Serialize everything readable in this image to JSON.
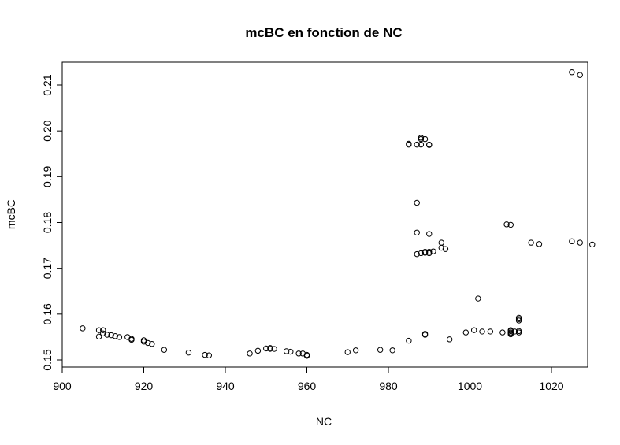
{
  "chart_data": {
    "type": "scatter",
    "title": "mcBC en fonction de NC",
    "xlabel": "NC",
    "ylabel": "mcBC",
    "xlim": [
      900,
      1030
    ],
    "ylim": [
      0.148,
      0.216
    ],
    "xticks": [
      900,
      920,
      940,
      960,
      980,
      1000,
      1020
    ],
    "xtick_labels": [
      "900",
      "920",
      "940",
      "960",
      "980",
      "1000",
      "1020"
    ],
    "yticks": [
      0.15,
      0.16,
      0.17,
      0.18,
      0.19,
      0.2,
      0.21
    ],
    "ytick_labels": [
      "0.15",
      "0.16",
      "0.17",
      "0.18",
      "0.19",
      "0.20",
      "0.21"
    ],
    "grid": false,
    "legend": "none",
    "marker": "open-circle",
    "series": [
      {
        "points": [
          [
            905,
            0.1569
          ],
          [
            909,
            0.1565
          ],
          [
            909,
            0.1551
          ],
          [
            910,
            0.1565
          ],
          [
            910,
            0.1558
          ],
          [
            911,
            0.1555
          ],
          [
            912,
            0.1554
          ],
          [
            913,
            0.1552
          ],
          [
            914,
            0.155
          ],
          [
            916,
            0.155
          ],
          [
            917,
            0.1546
          ],
          [
            917,
            0.1544
          ],
          [
            920,
            0.1543
          ],
          [
            920,
            0.154
          ],
          [
            921,
            0.1537
          ],
          [
            922,
            0.1535
          ],
          [
            925,
            0.1522
          ],
          [
            931,
            0.1516
          ],
          [
            935,
            0.1511
          ],
          [
            936,
            0.151
          ],
          [
            946,
            0.1514
          ],
          [
            948,
            0.152
          ],
          [
            950,
            0.1525
          ],
          [
            951,
            0.1524
          ],
          [
            951,
            0.1526
          ],
          [
            952,
            0.1524
          ],
          [
            955,
            0.1519
          ],
          [
            956,
            0.1518
          ],
          [
            958,
            0.1514
          ],
          [
            959,
            0.1514
          ],
          [
            960,
            0.1511
          ],
          [
            960,
            0.1509
          ],
          [
            970,
            0.1517
          ],
          [
            972,
            0.1521
          ],
          [
            978,
            0.1522
          ],
          [
            981,
            0.1521
          ],
          [
            985,
            0.1542
          ],
          [
            985,
            0.197
          ],
          [
            985,
            0.1972
          ],
          [
            987,
            0.197
          ],
          [
            988,
            0.197
          ],
          [
            988,
            0.1982
          ],
          [
            988,
            0.1985
          ],
          [
            989,
            0.1982
          ],
          [
            990,
            0.1969
          ],
          [
            990,
            0.197
          ],
          [
            987,
            0.1843
          ],
          [
            987,
            0.1778
          ],
          [
            990,
            0.1775
          ],
          [
            987,
            0.1731
          ],
          [
            988,
            0.1733
          ],
          [
            989,
            0.1734
          ],
          [
            989,
            0.1736
          ],
          [
            990,
            0.1733
          ],
          [
            990,
            0.1736
          ],
          [
            991,
            0.1737
          ],
          [
            993,
            0.1756
          ],
          [
            993,
            0.1745
          ],
          [
            994,
            0.1742
          ],
          [
            989,
            0.1555
          ],
          [
            989,
            0.1557
          ],
          [
            995,
            0.1545
          ],
          [
            999,
            0.156
          ],
          [
            1001,
            0.1565
          ],
          [
            1002,
            0.1634
          ],
          [
            1003,
            0.1562
          ],
          [
            1005,
            0.1562
          ],
          [
            1008,
            0.156
          ],
          [
            1009,
            0.1796
          ],
          [
            1010,
            0.1795
          ],
          [
            1010,
            0.1556
          ],
          [
            1010,
            0.1558
          ],
          [
            1010,
            0.156
          ],
          [
            1010,
            0.1563
          ],
          [
            1010,
            0.1565
          ],
          [
            1011,
            0.1562
          ],
          [
            1012,
            0.156
          ],
          [
            1012,
            0.1563
          ],
          [
            1012,
            0.1586
          ],
          [
            1012,
            0.1589
          ],
          [
            1012,
            0.1592
          ],
          [
            1015,
            0.1756
          ],
          [
            1017,
            0.1753
          ],
          [
            1025,
            0.1759
          ],
          [
            1025,
            0.2128
          ],
          [
            1027,
            0.1756
          ],
          [
            1027,
            0.2122
          ],
          [
            1030,
            0.1752
          ]
        ]
      }
    ]
  }
}
